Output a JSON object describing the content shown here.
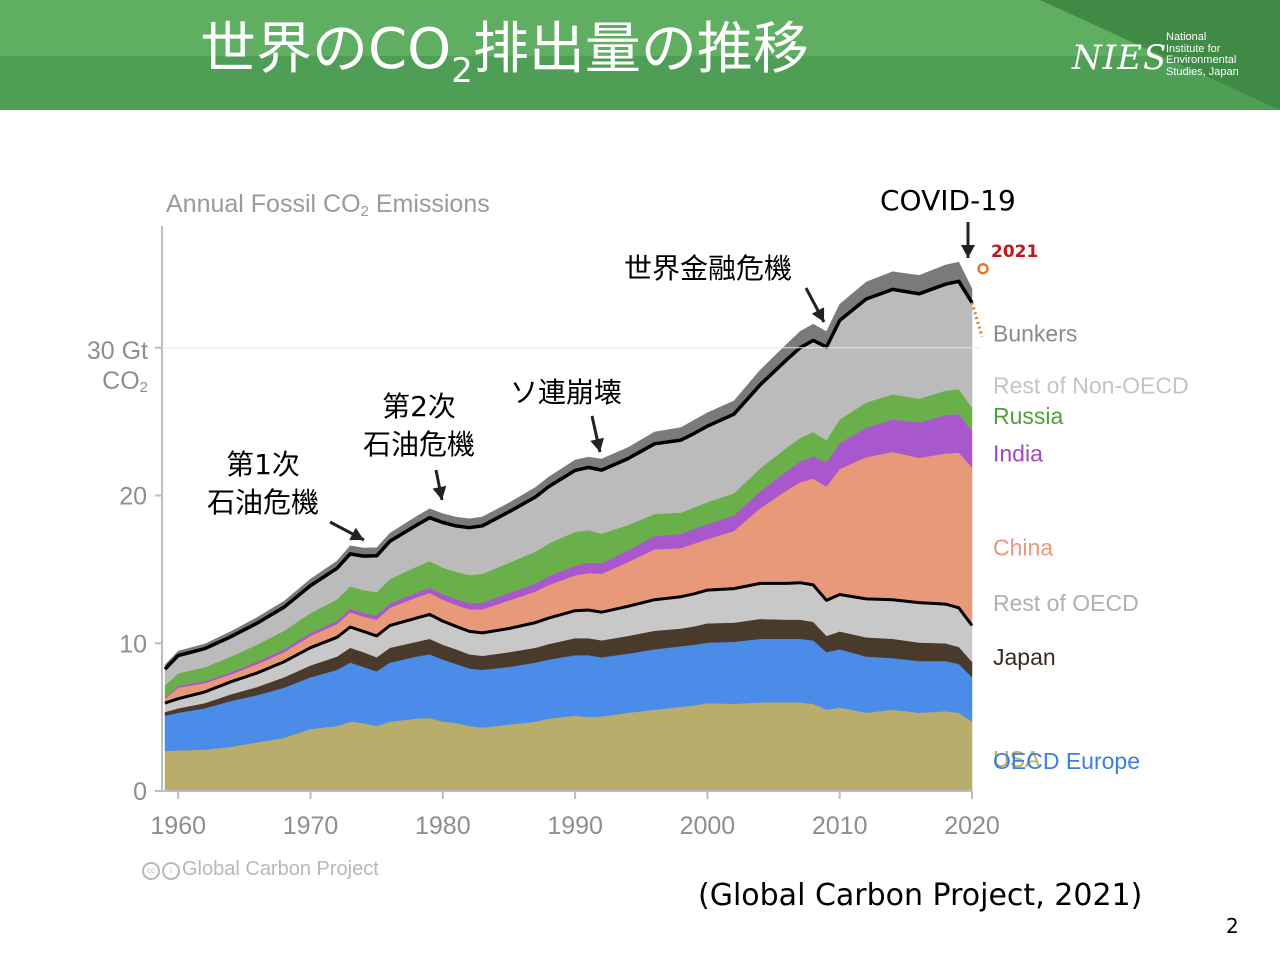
{
  "slide": {
    "title_pre": "世界のCO",
    "title_sub": "2",
    "title_post": "排出量の推移",
    "logo_mark": "NIES",
    "logo_lines": [
      "National",
      "Institute for",
      "Environmental",
      "Studies, Japan"
    ],
    "source": "(Global Carbon Project, 2021)",
    "page_number": "2",
    "credit": "Global Carbon Project",
    "cc_icon": "creative-commons-icon"
  },
  "annotations": {
    "covid": "COVID-19",
    "financial_crisis": "世界金融危機",
    "ussr_collapse": "ソ連崩壊",
    "oil_crisis_2_line1": "第2次",
    "oil_crisis_2_line2": "石油危機",
    "oil_crisis_1_line1": "第1次",
    "oil_crisis_1_line2": "石油危機"
  },
  "chart_data": {
    "type": "area",
    "stacked": true,
    "title_pre": "Annual Fossil CO",
    "title_sub": "2",
    "title_post": " Emissions",
    "ylabel_top": "30 Gt",
    "ylabel_unit_pre": "CO",
    "ylabel_unit_sub": "2",
    "ylim": [
      0,
      40
    ],
    "xlim": [
      1959,
      2020
    ],
    "yticks": [
      0,
      10,
      20
    ],
    "ytick_labels": [
      "0",
      "10",
      "20"
    ],
    "xticks": [
      1960,
      1970,
      1980,
      1990,
      2000,
      2010,
      2020
    ],
    "x": [
      1959,
      1960,
      1962,
      1964,
      1966,
      1968,
      1970,
      1972,
      1973,
      1974,
      1975,
      1976,
      1978,
      1979,
      1980,
      1981,
      1982,
      1983,
      1985,
      1987,
      1988,
      1990,
      1991,
      1992,
      1994,
      1996,
      1998,
      1999,
      2000,
      2002,
      2004,
      2006,
      2007,
      2008,
      2009,
      2010,
      2012,
      2014,
      2016,
      2018,
      2019,
      2020
    ],
    "series": [
      {
        "name": "USA",
        "color": "#b9ad6c",
        "values": [
          2.7,
          2.75,
          2.8,
          3.0,
          3.3,
          3.6,
          4.2,
          4.4,
          4.7,
          4.6,
          4.4,
          4.7,
          4.9,
          4.95,
          4.7,
          4.6,
          4.4,
          4.3,
          4.5,
          4.7,
          4.9,
          5.1,
          5.0,
          5.05,
          5.3,
          5.5,
          5.7,
          5.8,
          5.95,
          5.9,
          6.0,
          6.0,
          6.0,
          5.9,
          5.5,
          5.65,
          5.3,
          5.5,
          5.3,
          5.4,
          5.3,
          4.7
        ]
      },
      {
        "name": "OECD Europe",
        "color": "#4a8ce8",
        "values": [
          2.4,
          2.55,
          2.8,
          3.1,
          3.2,
          3.4,
          3.5,
          3.8,
          4.0,
          3.8,
          3.7,
          4.0,
          4.2,
          4.3,
          4.2,
          4.0,
          3.9,
          3.9,
          3.9,
          4.0,
          4.0,
          4.1,
          4.2,
          4.0,
          4.0,
          4.1,
          4.1,
          4.1,
          4.1,
          4.2,
          4.3,
          4.3,
          4.3,
          4.3,
          3.9,
          3.95,
          3.8,
          3.5,
          3.5,
          3.4,
          3.3,
          3.0
        ]
      },
      {
        "name": "Japan",
        "color": "#4a3a2c",
        "values": [
          0.25,
          0.3,
          0.35,
          0.45,
          0.55,
          0.7,
          0.8,
          0.9,
          1.0,
          1.0,
          0.95,
          1.0,
          1.0,
          1.05,
          1.0,
          1.0,
          0.95,
          0.95,
          1.0,
          1.0,
          1.05,
          1.15,
          1.15,
          1.15,
          1.2,
          1.25,
          1.2,
          1.25,
          1.3,
          1.3,
          1.35,
          1.3,
          1.3,
          1.25,
          1.1,
          1.2,
          1.3,
          1.3,
          1.25,
          1.2,
          1.15,
          1.05
        ]
      },
      {
        "name": "Rest of OECD",
        "color": "#c8c8c8",
        "values": [
          0.6,
          0.65,
          0.75,
          0.85,
          0.95,
          1.05,
          1.2,
          1.3,
          1.4,
          1.4,
          1.45,
          1.5,
          1.6,
          1.65,
          1.6,
          1.55,
          1.55,
          1.55,
          1.6,
          1.7,
          1.75,
          1.85,
          1.9,
          1.9,
          2.0,
          2.1,
          2.15,
          2.2,
          2.25,
          2.3,
          2.4,
          2.45,
          2.5,
          2.5,
          2.4,
          2.5,
          2.6,
          2.65,
          2.7,
          2.65,
          2.65,
          2.45
        ]
      },
      {
        "name": "China",
        "color": "#e8997a",
        "values": [
          0.3,
          0.75,
          0.6,
          0.5,
          0.6,
          0.65,
          0.8,
          0.9,
          1.0,
          1.0,
          1.1,
          1.2,
          1.4,
          1.45,
          1.45,
          1.45,
          1.5,
          1.6,
          1.9,
          2.1,
          2.25,
          2.4,
          2.5,
          2.6,
          3.0,
          3.4,
          3.3,
          3.4,
          3.45,
          3.9,
          5.1,
          6.3,
          6.8,
          7.2,
          7.7,
          8.5,
          9.6,
          10.0,
          9.8,
          10.2,
          10.5,
          10.7
        ]
      },
      {
        "name": "India",
        "color": "#a858cc",
        "values": [
          0.1,
          0.12,
          0.13,
          0.15,
          0.18,
          0.2,
          0.2,
          0.22,
          0.25,
          0.25,
          0.27,
          0.3,
          0.33,
          0.35,
          0.37,
          0.39,
          0.42,
          0.45,
          0.5,
          0.55,
          0.6,
          0.65,
          0.7,
          0.72,
          0.8,
          0.9,
          0.95,
          1.0,
          1.0,
          1.05,
          1.15,
          1.3,
          1.4,
          1.5,
          1.65,
          1.75,
          2.0,
          2.2,
          2.4,
          2.6,
          2.6,
          2.45
        ]
      },
      {
        "name": "Russia",
        "color": "#6ab04a",
        "values": [
          0.8,
          0.85,
          0.95,
          1.05,
          1.15,
          1.25,
          1.35,
          1.45,
          1.5,
          1.55,
          1.6,
          1.65,
          1.75,
          1.8,
          1.8,
          1.85,
          1.9,
          1.95,
          2.05,
          2.15,
          2.2,
          2.3,
          2.2,
          2.0,
          1.7,
          1.5,
          1.45,
          1.45,
          1.5,
          1.5,
          1.55,
          1.6,
          1.6,
          1.65,
          1.5,
          1.6,
          1.7,
          1.7,
          1.6,
          1.65,
          1.7,
          1.6
        ]
      },
      {
        "name": "Rest of Non-OECD",
        "color": "#bbbbbb",
        "values": [
          1.1,
          1.2,
          1.25,
          1.35,
          1.45,
          1.6,
          1.85,
          2.1,
          2.2,
          2.3,
          2.45,
          2.55,
          2.8,
          2.95,
          3.05,
          3.1,
          3.2,
          3.25,
          3.45,
          3.7,
          3.85,
          4.15,
          4.25,
          4.3,
          4.5,
          4.75,
          4.9,
          5.0,
          5.15,
          5.35,
          5.65,
          5.95,
          6.1,
          6.2,
          6.3,
          6.7,
          7.0,
          7.1,
          7.1,
          7.2,
          7.3,
          7.1
        ]
      },
      {
        "name": "Bunkers",
        "color": "#7a7a7a",
        "values": [
          0.3,
          0.3,
          0.32,
          0.35,
          0.38,
          0.4,
          0.45,
          0.5,
          0.55,
          0.55,
          0.55,
          0.55,
          0.6,
          0.6,
          0.6,
          0.6,
          0.6,
          0.6,
          0.6,
          0.65,
          0.65,
          0.7,
          0.7,
          0.75,
          0.75,
          0.8,
          0.85,
          0.9,
          0.9,
          0.9,
          1.0,
          1.05,
          1.1,
          1.1,
          1.05,
          1.1,
          1.15,
          1.2,
          1.25,
          1.3,
          1.3,
          0.95
        ]
      }
    ],
    "total_line_color": "#000000",
    "nonoecd_boundary_color": "#000000",
    "label_colors": {
      "Bunkers": "#8a8a8a",
      "Rest of Non-OECD": "#c4c4c4",
      "Russia": "#4fa03c",
      "India": "#9d48c4",
      "China": "#e8997a",
      "Rest of OECD": "#b0b0b0",
      "Japan": "#3a2a20",
      "OECD Europe": "#3a7fe0",
      "USA": "#b9ad6c"
    },
    "year_2021_label": "2021",
    "year_2021_color": "#c0181a",
    "projection_color": "#e07a30"
  }
}
